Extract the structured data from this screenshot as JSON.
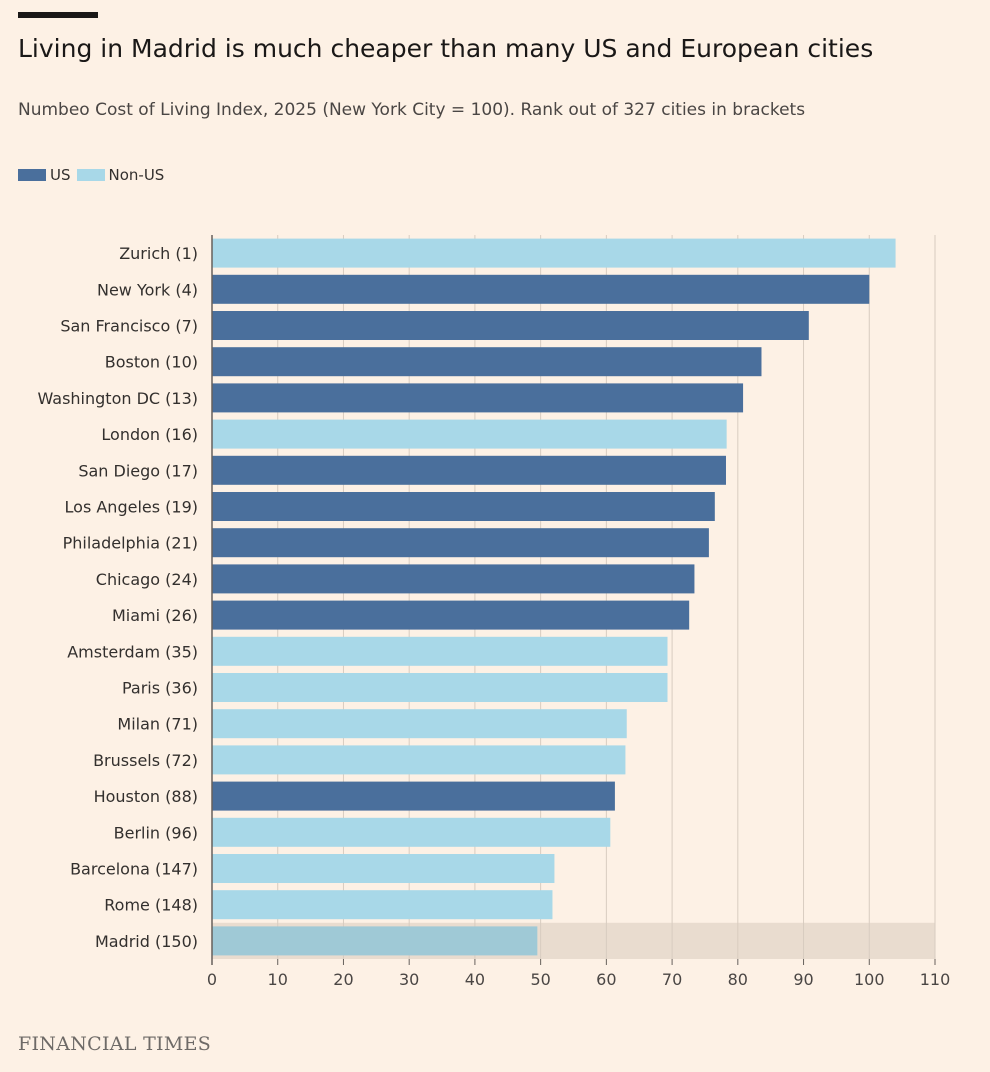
{
  "title": "Living in Madrid is much cheaper than many US and European cities",
  "subtitle": "Numbeo Cost of Living Index, 2025 (New York City = 100). Rank out of 327 cities in brackets",
  "legend": [
    {
      "label": "US",
      "color": "#4a6f9c"
    },
    {
      "label": "Non-US",
      "color": "#a8d8e8"
    }
  ],
  "source": "FINANCIAL TIMES",
  "chart_data": {
    "type": "bar",
    "orientation": "horizontal",
    "title": "Living in Madrid is much cheaper than many US and European cities",
    "subtitle": "Numbeo Cost of Living Index, 2025 (New York City = 100). Rank out of 327 cities in brackets",
    "xlabel": "",
    "ylabel": "",
    "xlim": [
      0,
      110
    ],
    "xticks": [
      0,
      10,
      20,
      30,
      40,
      50,
      60,
      70,
      80,
      90,
      100,
      110
    ],
    "grid": "vertical",
    "legend_position": "top-left",
    "highlighted_category": "Madrid (150)",
    "highlight_color": "#e9dccf",
    "series_colors": {
      "US": "#4a6f9c",
      "Non-US": "#a8d8e8",
      "Madrid": "#9fc9d6"
    },
    "categories": [
      "Zurich (1)",
      "New York (4)",
      "San Francisco (7)",
      "Boston (10)",
      "Washington DC (13)",
      "London (16)",
      "San Diego (17)",
      "Los Angeles (19)",
      "Philadelphia (21)",
      "Chicago (24)",
      "Miami (26)",
      "Amsterdam (35)",
      "Paris (36)",
      "Milan (71)",
      "Brussels (72)",
      "Houston (88)",
      "Berlin (96)",
      "Barcelona (147)",
      "Rome (148)",
      "Madrid (150)"
    ],
    "values": [
      104,
      100,
      90.8,
      83.6,
      80.8,
      78.3,
      78.2,
      76.5,
      75.6,
      73.4,
      72.6,
      69.3,
      69.3,
      63.1,
      62.9,
      61.3,
      60.6,
      52.1,
      51.8,
      49.5
    ],
    "groups": [
      "Non-US",
      "US",
      "US",
      "US",
      "US",
      "Non-US",
      "US",
      "US",
      "US",
      "US",
      "US",
      "Non-US",
      "Non-US",
      "Non-US",
      "Non-US",
      "US",
      "Non-US",
      "Non-US",
      "Non-US",
      "Non-US"
    ]
  }
}
